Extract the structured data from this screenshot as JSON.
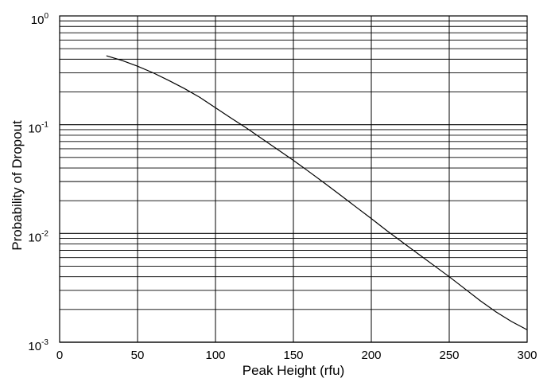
{
  "chart_data": {
    "type": "line",
    "title": "",
    "xlabel": "Peak Height  (rfu)",
    "ylabel": "Probability of Dropout",
    "xlim": [
      0,
      300
    ],
    "ylim": [
      0.001,
      1
    ],
    "yscale": "log",
    "grid": true,
    "x_ticks": [
      0,
      50,
      100,
      150,
      200,
      250,
      300
    ],
    "x_tick_labels": [
      "0",
      "50",
      "100",
      "150",
      "200",
      "250",
      "300"
    ],
    "y_ticks": [
      0.001,
      0.01,
      0.1,
      1
    ],
    "y_tick_labels": [
      {
        "base": "10",
        "exp": "-3"
      },
      {
        "base": "10",
        "exp": "-2"
      },
      {
        "base": "10",
        "exp": "-1"
      },
      {
        "base": "10",
        "exp": "0"
      }
    ],
    "series": [
      {
        "color": "#000000",
        "x": [
          30,
          40,
          50,
          60,
          70,
          80,
          90,
          100,
          110,
          120,
          130,
          140,
          150,
          160,
          170,
          180,
          190,
          200,
          210,
          220,
          230,
          240,
          250,
          260,
          270,
          280,
          290,
          300
        ],
        "y": [
          0.43,
          0.39,
          0.345,
          0.3,
          0.255,
          0.215,
          0.178,
          0.143,
          0.115,
          0.093,
          0.074,
          0.059,
          0.047,
          0.037,
          0.029,
          0.0226,
          0.0176,
          0.0137,
          0.0106,
          0.0083,
          0.0065,
          0.0051,
          0.004,
          0.0031,
          0.0024,
          0.0019,
          0.00155,
          0.0013
        ]
      }
    ]
  }
}
